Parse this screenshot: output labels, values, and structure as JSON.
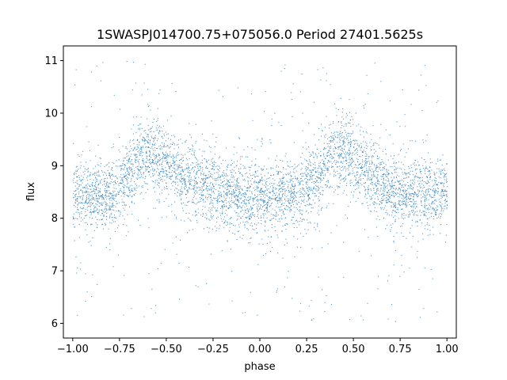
{
  "chart_data": {
    "type": "scatter",
    "title": "1SWASPJ014700.75+075056.0 Period 27401.5625s",
    "xlabel": "phase",
    "ylabel": "flux",
    "xlim": [
      -1.05,
      1.05
    ],
    "ylim": [
      5.72,
      11.28
    ],
    "xticks": [
      -1.0,
      -0.75,
      -0.5,
      -0.25,
      0.0,
      0.25,
      0.5,
      0.75,
      1.0
    ],
    "xtick_labels": [
      "−1.00",
      "−0.75",
      "−0.50",
      "−0.25",
      "0.00",
      "0.25",
      "0.50",
      "0.75",
      "1.00"
    ],
    "yticks": [
      6,
      7,
      8,
      9,
      10,
      11
    ],
    "ytick_labels": [
      "6",
      "7",
      "8",
      "9",
      "10",
      "11"
    ],
    "grid": false,
    "point_color": "#1f77b4",
    "series": [
      {
        "profile_phase": [
          -1.0,
          -0.9,
          -0.8,
          -0.7,
          -0.6,
          -0.5,
          -0.4,
          -0.3,
          -0.2,
          -0.1,
          0.0,
          0.1,
          0.2,
          0.3,
          0.4,
          0.5,
          0.6,
          0.7,
          0.8,
          0.9,
          1.0
        ],
        "profile_flux": [
          8.45,
          8.45,
          8.5,
          8.85,
          9.3,
          9.05,
          8.75,
          8.6,
          8.5,
          8.42,
          8.4,
          8.4,
          8.45,
          8.75,
          9.35,
          9.1,
          8.8,
          8.6,
          8.5,
          8.45,
          8.45
        ],
        "scatter_std": 0.35,
        "outlier_range": [
          6.0,
          11.0
        ]
      }
    ]
  }
}
